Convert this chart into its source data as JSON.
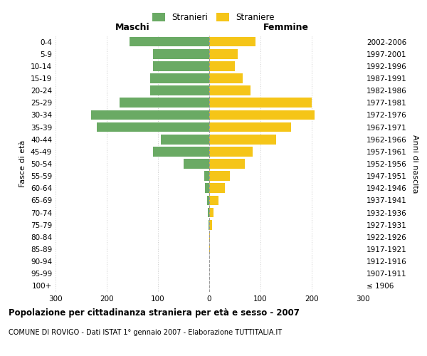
{
  "age_groups": [
    "100+",
    "95-99",
    "90-94",
    "85-89",
    "80-84",
    "75-79",
    "70-74",
    "65-69",
    "60-64",
    "55-59",
    "50-54",
    "45-49",
    "40-44",
    "35-39",
    "30-34",
    "25-29",
    "20-24",
    "15-19",
    "10-14",
    "5-9",
    "0-4"
  ],
  "birth_years": [
    "≤ 1906",
    "1907-1911",
    "1912-1916",
    "1917-1921",
    "1922-1926",
    "1927-1931",
    "1932-1936",
    "1937-1941",
    "1942-1946",
    "1947-1951",
    "1952-1956",
    "1957-1961",
    "1962-1966",
    "1967-1971",
    "1972-1976",
    "1977-1981",
    "1982-1986",
    "1987-1991",
    "1992-1996",
    "1997-2001",
    "2002-2006"
  ],
  "maschi": [
    0,
    0,
    0,
    0,
    0,
    2,
    3,
    4,
    8,
    10,
    50,
    110,
    95,
    220,
    230,
    175,
    115,
    115,
    110,
    110,
    155
  ],
  "femmine": [
    0,
    0,
    0,
    1,
    2,
    5,
    8,
    18,
    30,
    40,
    70,
    85,
    130,
    160,
    205,
    200,
    80,
    65,
    50,
    55,
    90
  ],
  "male_color": "#6aaa64",
  "female_color": "#f5c518",
  "xlim": 300,
  "title": "Popolazione per cittadinanza straniera per età e sesso - 2007",
  "subtitle": "COMUNE DI ROVIGO - Dati ISTAT 1° gennaio 2007 - Elaborazione TUTTITALIA.IT",
  "legend_male": "Stranieri",
  "legend_female": "Straniere",
  "label_maschi": "Maschi",
  "label_femmine": "Femmine",
  "ylabel_left": "Fasce di età",
  "ylabel_right": "Anni di nascita",
  "bg_color": "#ffffff",
  "grid_color": "#cccccc"
}
